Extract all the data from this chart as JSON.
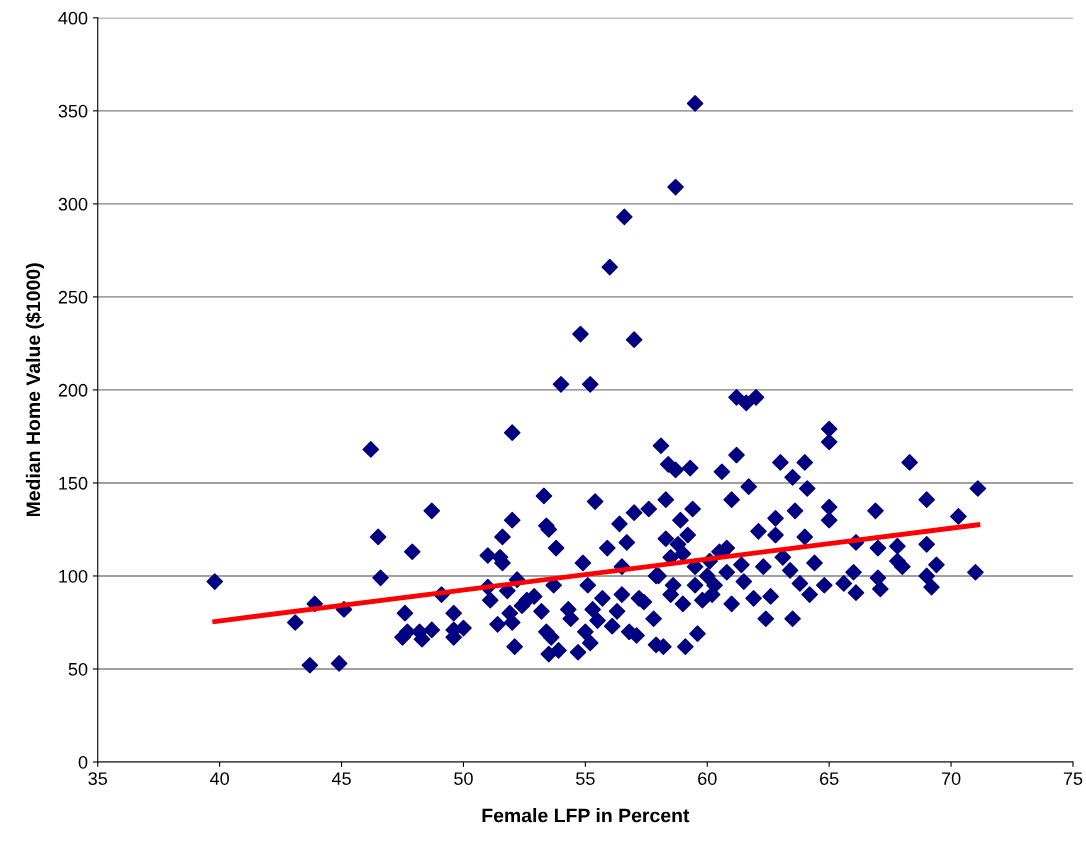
{
  "chart_data": {
    "type": "scatter",
    "xlabel": "Female LFP in Percent",
    "ylabel": "Median Home Value ($1000)",
    "xlim": [
      35,
      75
    ],
    "xticks": [
      35,
      40,
      45,
      50,
      55,
      60,
      65,
      70,
      75
    ],
    "ylim": [
      0,
      400
    ],
    "yticks": [
      0,
      50,
      100,
      150,
      200,
      250,
      300,
      350,
      400
    ],
    "grid": "y",
    "series": [
      {
        "color": "#000080",
        "marker": "diamond",
        "x": [
          39.8,
          43.1,
          43.7,
          43.9,
          44.9,
          45.1,
          46.2,
          46.5,
          46.6,
          47.6,
          47.5,
          47.7,
          47.9,
          48.2,
          48.3,
          48.7,
          48.7,
          49.1,
          49.6,
          49.6,
          49.6,
          50.0,
          51.0,
          51.0,
          51.1,
          51.4,
          51.5,
          51.6,
          51.6,
          51.8,
          51.9,
          52.0,
          52.0,
          52.0,
          52.1,
          52.2,
          52.4,
          52.6,
          52.9,
          53.2,
          53.3,
          53.4,
          53.5,
          53.4,
          53.5,
          53.7,
          53.8,
          53.9,
          53.6,
          54.0,
          54.3,
          54.4,
          54.7,
          54.8,
          54.9,
          55.0,
          55.1,
          55.2,
          55.2,
          55.3,
          55.4,
          55.5,
          55.7,
          55.9,
          56.0,
          56.1,
          56.3,
          56.4,
          56.5,
          56.6,
          56.5,
          56.7,
          56.8,
          57.0,
          57.0,
          57.1,
          57.2,
          57.4,
          57.6,
          57.8,
          57.9,
          57.9,
          58.1,
          58.2,
          58.3,
          58.3,
          58.4,
          58.5,
          58.6,
          58.7,
          58.7,
          58.8,
          58.9,
          59.0,
          59.1,
          59.2,
          59.3,
          59.4,
          59.5,
          59.5,
          59.6,
          59.8,
          60.0,
          60.1,
          60.3,
          60.6,
          60.8,
          61.0,
          61.0,
          61.2,
          61.2,
          61.4,
          61.6,
          61.7,
          61.9,
          62.0,
          62.1,
          62.3,
          62.4,
          62.6,
          62.8,
          62.8,
          63.0,
          63.1,
          63.4,
          63.5,
          63.5,
          63.6,
          63.8,
          64.0,
          64.0,
          64.1,
          64.2,
          64.4,
          64.8,
          65.0,
          65.0,
          65.0,
          65.0,
          65.6,
          66.0,
          66.1,
          66.1,
          66.9,
          67.0,
          67.0,
          67.1,
          67.8,
          67.8,
          68.0,
          68.3,
          69.0,
          69.0,
          69.0,
          69.2,
          69.4,
          70.3,
          71.0,
          71.1,
          58.0,
          59.0,
          59.5,
          60.2,
          60.5,
          61.5,
          60.8,
          58.5
        ],
        "values": [
          97,
          75,
          52,
          85,
          53,
          82,
          168,
          121,
          99,
          80,
          67,
          70,
          113,
          70,
          66,
          135,
          71,
          90,
          80,
          67,
          71,
          72,
          111,
          94,
          87,
          74,
          110,
          121,
          107,
          92,
          80,
          130,
          177,
          75,
          62,
          98,
          84,
          87,
          89,
          81,
          143,
          127,
          125,
          70,
          58,
          95,
          115,
          60,
          67,
          203,
          82,
          77,
          59,
          230,
          107,
          70,
          95,
          203,
          64,
          82,
          140,
          76,
          88,
          115,
          266,
          73,
          81,
          128,
          105,
          293,
          90,
          118,
          70,
          227,
          134,
          68,
          88,
          86,
          136,
          77,
          63,
          100,
          170,
          62,
          141,
          120,
          160,
          110,
          95,
          309,
          157,
          117,
          130,
          85,
          62,
          122,
          158,
          136,
          354,
          105,
          69,
          87,
          100,
          108,
          95,
          156,
          115,
          85,
          141,
          196,
          165,
          106,
          193,
          148,
          88,
          196,
          124,
          105,
          77,
          89,
          122,
          131,
          161,
          110,
          103,
          153,
          77,
          135,
          96,
          161,
          121,
          147,
          90,
          107,
          95,
          179,
          172,
          137,
          130,
          96,
          102,
          118,
          91,
          135,
          115,
          99,
          93,
          116,
          108,
          105,
          161,
          141,
          117,
          100,
          94,
          106,
          132,
          102,
          147,
          100,
          112,
          95,
          90,
          113,
          97,
          102,
          90
        ]
      },
      {
        "type": "line",
        "color": "#ff0000",
        "marker": "none",
        "line_style": "solid",
        "x": [
          39.8,
          71.1
        ],
        "values": [
          75.5,
          127.5
        ]
      }
    ]
  }
}
